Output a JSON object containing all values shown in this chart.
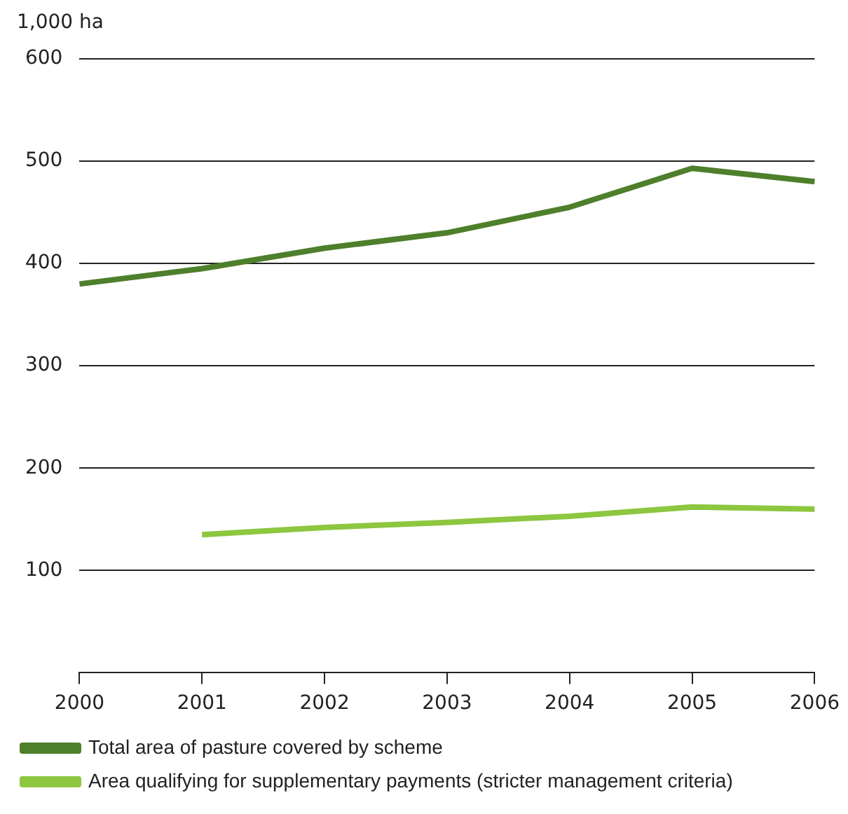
{
  "chart_data": {
    "type": "line",
    "ylabel": "1,000 ha",
    "categories": [
      "2000",
      "2001",
      "2002",
      "2003",
      "2004",
      "2005",
      "2006"
    ],
    "series": [
      {
        "name": "Total area of pasture covered by scheme",
        "color": "#4e7f2b",
        "values": [
          380,
          395,
          415,
          430,
          455,
          493,
          480
        ]
      },
      {
        "name": "Area qualifying for supplementary payments (stricter management criteria)",
        "color": "#8dc63f",
        "values": [
          null,
          135,
          142,
          147,
          153,
          162,
          160
        ]
      }
    ],
    "ylim": [
      0,
      600
    ],
    "yticks": [
      100,
      200,
      300,
      400,
      500,
      600
    ],
    "grid": "y",
    "legend": "bottom",
    "marker": "none",
    "line_style": "solid"
  }
}
